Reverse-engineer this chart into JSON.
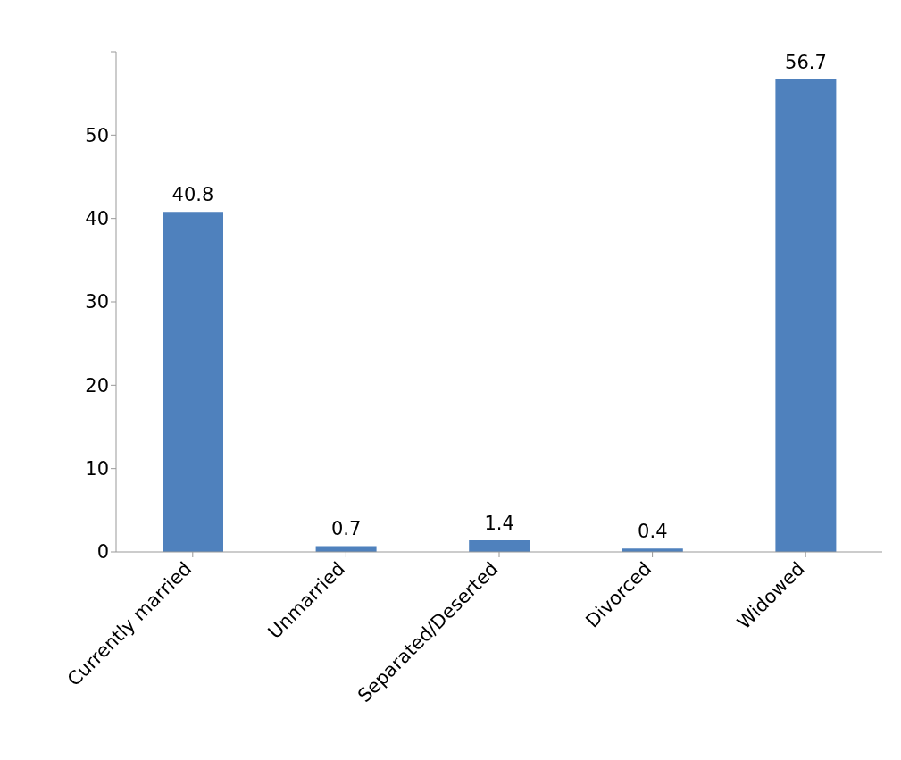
{
  "chart_data": {
    "type": "bar",
    "categories": [
      "Currently married",
      "Unmarried",
      "Separated/Deserted",
      "Divorced",
      "Widowed"
    ],
    "values": [
      40.8,
      0.7,
      1.4,
      0.4,
      56.7
    ],
    "color": "#4f81bd",
    "data_labels": true,
    "ylim": [
      0,
      60
    ],
    "yticks": [
      0,
      10,
      20,
      30,
      40,
      50,
      {
        "value": 60,
        "label": null
      }
    ],
    "grid": false,
    "legend": false
  }
}
